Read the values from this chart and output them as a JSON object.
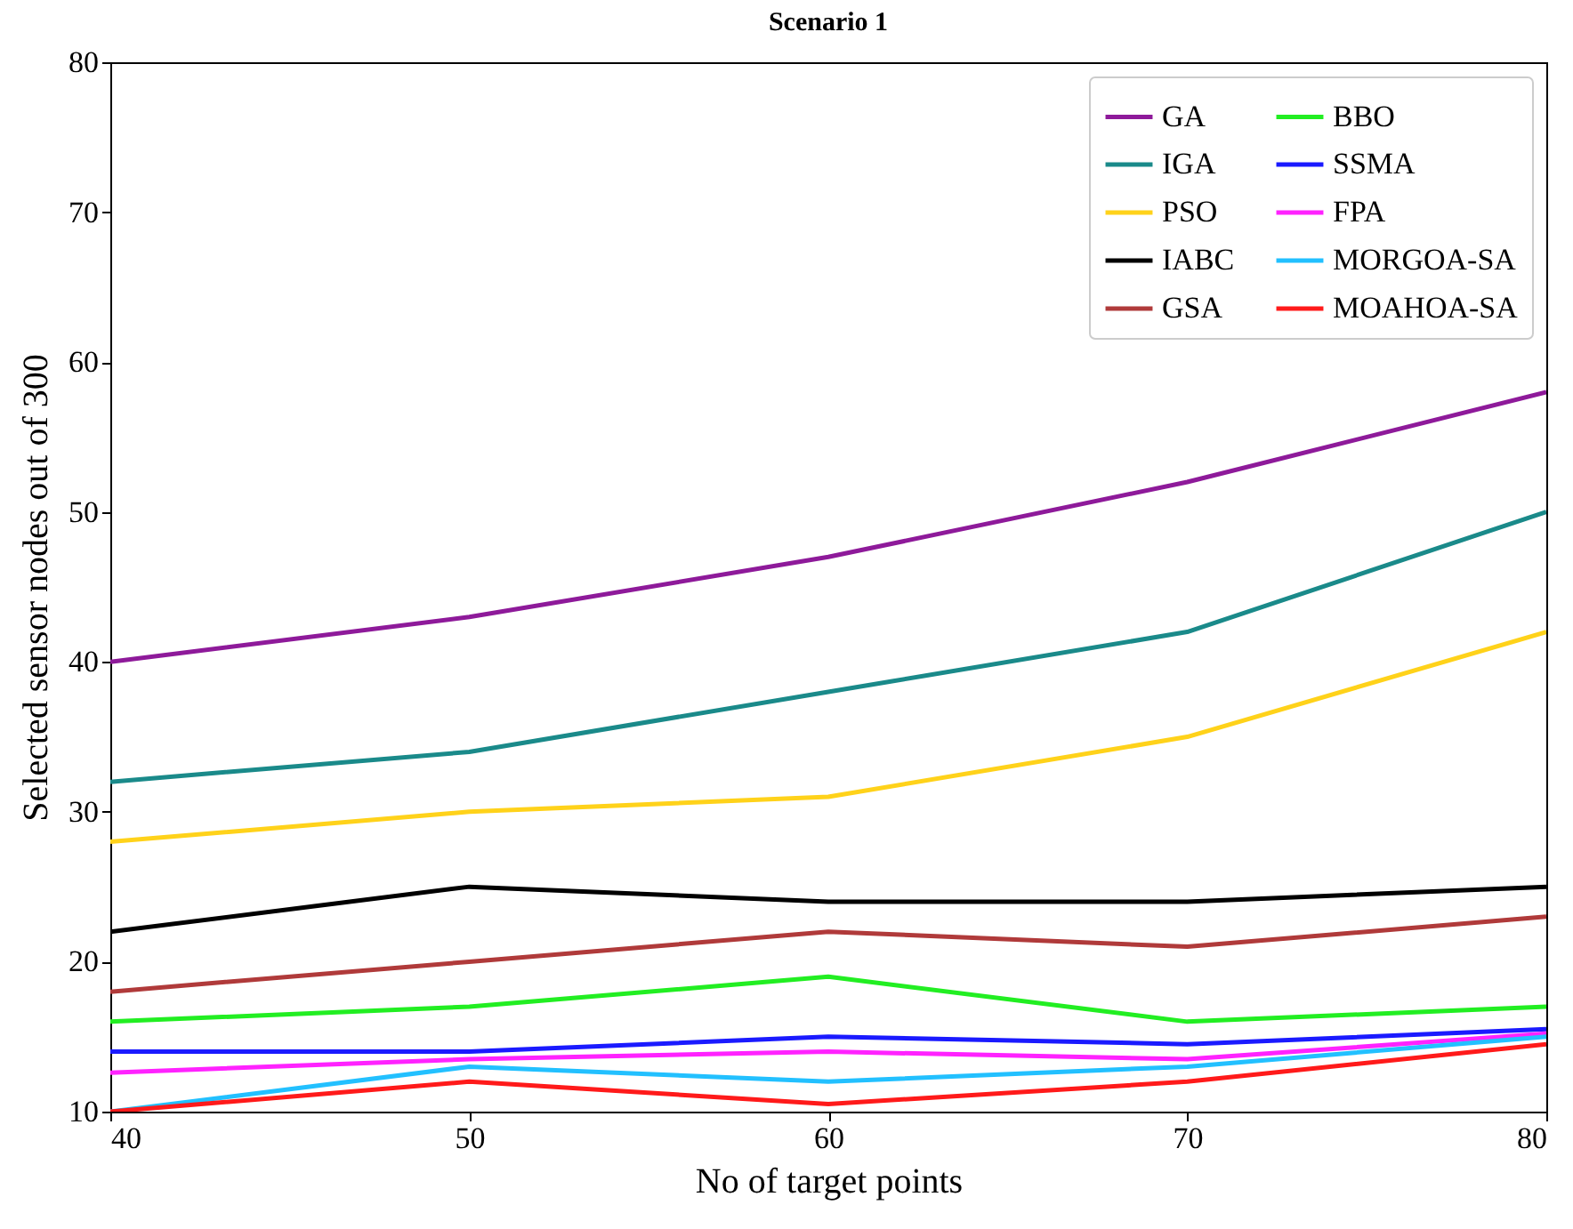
{
  "chart_data": {
    "type": "line",
    "title": "Scenario 1",
    "xlabel": "No of target points",
    "ylabel": "Selected sensor nodes out of 300",
    "x": [
      40,
      50,
      60,
      70,
      80
    ],
    "xlim": [
      40,
      80
    ],
    "xticks": [
      40,
      50,
      60,
      70,
      80
    ],
    "ylim": [
      10,
      80
    ],
    "yticks": [
      10,
      20,
      30,
      40,
      50,
      60,
      70,
      80
    ],
    "grid": false,
    "legend": "top right",
    "line_style": "solid",
    "series": [
      {
        "name": "GA",
        "color": "#8e1a9a",
        "values": [
          40,
          43,
          47,
          52,
          58
        ]
      },
      {
        "name": "IGA",
        "color": "#1a8a8a",
        "values": [
          32,
          34,
          38,
          42,
          50
        ]
      },
      {
        "name": "PSO",
        "color": "#ffd21a",
        "values": [
          28,
          30,
          31,
          35,
          42
        ]
      },
      {
        "name": "IABC",
        "color": "#000000",
        "values": [
          22,
          25,
          24,
          24,
          25
        ]
      },
      {
        "name": "GSA",
        "color": "#b03a3a",
        "values": [
          18,
          20,
          22,
          21,
          23
        ]
      },
      {
        "name": "BBO",
        "color": "#22ee22",
        "values": [
          16,
          17,
          19,
          16,
          17
        ]
      },
      {
        "name": "SSMA",
        "color": "#1a1aff",
        "values": [
          14,
          14,
          15,
          14.5,
          15.5
        ]
      },
      {
        "name": "FPA",
        "color": "#ff22ff",
        "values": [
          12.6,
          13.5,
          14,
          13.5,
          15.2
        ]
      },
      {
        "name": "MORGOA-SA",
        "color": "#22c0ff",
        "values": [
          10,
          13,
          12,
          13,
          15
        ]
      },
      {
        "name": "MOAHOA-SA",
        "color": "#ff1a1a",
        "values": [
          10,
          12,
          10.5,
          12,
          14.5
        ]
      }
    ]
  }
}
